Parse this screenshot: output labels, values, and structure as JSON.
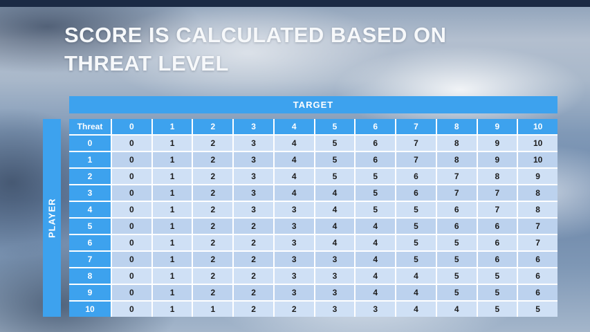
{
  "title": {
    "line1": "SCORE IS CALCULATED BASED ON",
    "line2": "THREAT LEVEL"
  },
  "matrix": {
    "target_label": "TARGET",
    "player_label": "PLAYER",
    "corner_label": "Threat",
    "columns": [
      "0",
      "1",
      "2",
      "3",
      "4",
      "5",
      "6",
      "7",
      "8",
      "9",
      "10"
    ],
    "rows": [
      {
        "label": "0",
        "values": [
          "0",
          "1",
          "2",
          "3",
          "4",
          "5",
          "6",
          "7",
          "8",
          "9",
          "10"
        ]
      },
      {
        "label": "1",
        "values": [
          "0",
          "1",
          "2",
          "3",
          "4",
          "5",
          "6",
          "7",
          "8",
          "9",
          "10"
        ]
      },
      {
        "label": "2",
        "values": [
          "0",
          "1",
          "2",
          "3",
          "4",
          "5",
          "5",
          "6",
          "7",
          "8",
          "9"
        ]
      },
      {
        "label": "3",
        "values": [
          "0",
          "1",
          "2",
          "3",
          "4",
          "4",
          "5",
          "6",
          "7",
          "7",
          "8"
        ]
      },
      {
        "label": "4",
        "values": [
          "0",
          "1",
          "2",
          "3",
          "3",
          "4",
          "5",
          "5",
          "6",
          "7",
          "8"
        ]
      },
      {
        "label": "5",
        "values": [
          "0",
          "1",
          "2",
          "2",
          "3",
          "4",
          "4",
          "5",
          "6",
          "6",
          "7"
        ]
      },
      {
        "label": "6",
        "values": [
          "0",
          "1",
          "2",
          "2",
          "3",
          "4",
          "4",
          "5",
          "5",
          "6",
          "7"
        ]
      },
      {
        "label": "7",
        "values": [
          "0",
          "1",
          "2",
          "2",
          "3",
          "3",
          "4",
          "5",
          "5",
          "6",
          "6"
        ]
      },
      {
        "label": "8",
        "values": [
          "0",
          "1",
          "2",
          "2",
          "3",
          "3",
          "4",
          "4",
          "5",
          "5",
          "6"
        ]
      },
      {
        "label": "9",
        "values": [
          "0",
          "1",
          "2",
          "2",
          "3",
          "3",
          "4",
          "4",
          "5",
          "5",
          "6"
        ]
      },
      {
        "label": "10",
        "values": [
          "0",
          "1",
          "1",
          "2",
          "2",
          "3",
          "3",
          "4",
          "4",
          "5",
          "5"
        ]
      }
    ]
  },
  "colors": {
    "accent_blue": "#3da2ee",
    "row_light": "#cfe0f5",
    "row_dark": "#bcd2ee",
    "cell_text": "#1c1c1c"
  }
}
